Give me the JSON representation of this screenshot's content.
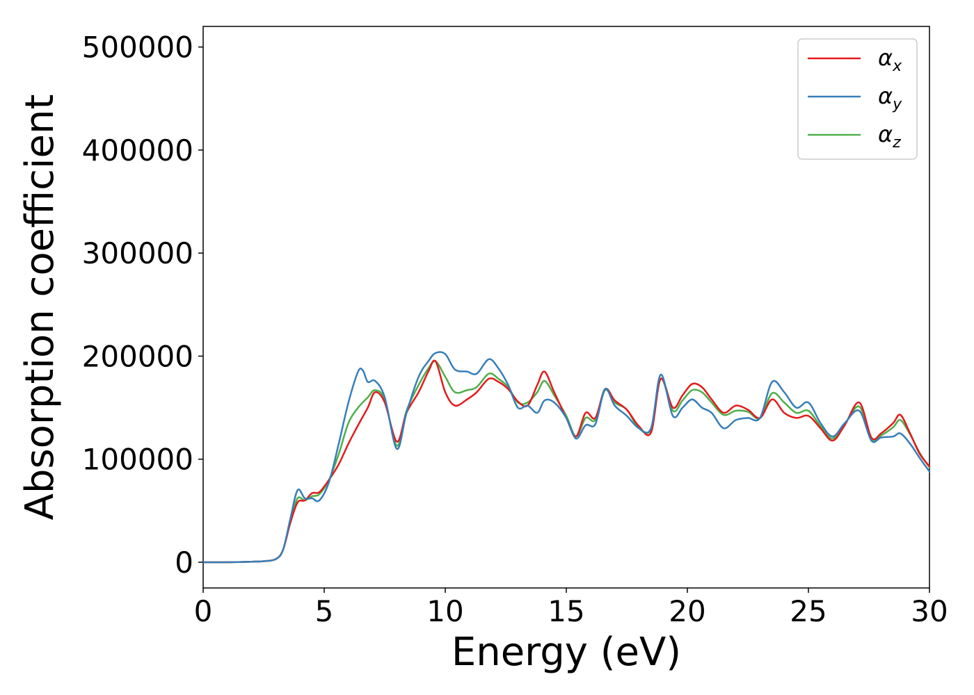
{
  "chart_data": {
    "type": "line",
    "title": "",
    "xlabel": "Energy (eV)",
    "ylabel": "Absorption coefficient",
    "xlim": [
      0,
      30
    ],
    "ylim": [
      -25000,
      520000
    ],
    "xticks": [
      0,
      5,
      10,
      15,
      20,
      25,
      30
    ],
    "yticks": [
      0,
      100000,
      200000,
      300000,
      400000,
      500000
    ],
    "xtick_labels": [
      "0",
      "5",
      "10",
      "15",
      "20",
      "25",
      "30"
    ],
    "ytick_labels": [
      "0",
      "100000",
      "200000",
      "300000",
      "400000",
      "500000"
    ],
    "grid": false,
    "legend_position": "top-right",
    "series": [
      {
        "name": "αx",
        "symbol": "α",
        "subscript": "x",
        "color": "#e41a1c",
        "x": [
          0,
          1,
          2,
          2.5,
          3,
          3.3,
          3.6,
          3.9,
          4.2,
          4.5,
          4.8,
          5.2,
          5.6,
          6.0,
          6.4,
          6.8,
          7.1,
          7.5,
          8.0,
          8.4,
          8.9,
          9.3,
          9.6,
          10.0,
          10.4,
          10.9,
          11.3,
          11.8,
          12.2,
          12.6,
          13.0,
          13.4,
          13.8,
          14.1,
          14.5,
          15.0,
          15.4,
          15.8,
          16.2,
          16.6,
          17.0,
          17.5,
          18.0,
          18.5,
          18.9,
          19.4,
          19.8,
          20.2,
          20.6,
          21.0,
          21.5,
          22.0,
          22.5,
          23.0,
          23.5,
          24.0,
          24.5,
          25.0,
          25.5,
          26.0,
          26.5,
          27.1,
          27.6,
          28.0,
          28.5,
          28.8,
          29.2,
          29.6,
          30.0
        ],
        "values": [
          0,
          0,
          500,
          1000,
          3000,
          12000,
          38000,
          58000,
          60000,
          67000,
          68000,
          80000,
          95000,
          115000,
          133000,
          150000,
          165000,
          155000,
          117000,
          145000,
          165000,
          185000,
          195000,
          165000,
          152000,
          158000,
          165000,
          178000,
          175000,
          168000,
          156000,
          152000,
          172000,
          185000,
          165000,
          140000,
          122000,
          145000,
          140000,
          168000,
          157000,
          148000,
          132000,
          126000,
          178000,
          150000,
          162000,
          173000,
          170000,
          158000,
          145000,
          152000,
          148000,
          140000,
          158000,
          145000,
          140000,
          142000,
          130000,
          118000,
          133000,
          155000,
          121000,
          125000,
          135000,
          143000,
          125000,
          105000,
          93000
        ]
      },
      {
        "name": "αy",
        "symbol": "α",
        "subscript": "y",
        "color": "#377eb8",
        "x": [
          0,
          1,
          2,
          2.5,
          3,
          3.3,
          3.6,
          3.9,
          4.2,
          4.5,
          4.8,
          5.2,
          5.6,
          6.0,
          6.4,
          6.6,
          6.8,
          7.1,
          7.5,
          8.0,
          8.4,
          8.9,
          9.3,
          9.6,
          10.0,
          10.4,
          10.9,
          11.3,
          11.8,
          12.2,
          12.6,
          13.0,
          13.4,
          13.8,
          14.1,
          14.5,
          15.0,
          15.4,
          15.8,
          16.2,
          16.6,
          17.0,
          17.5,
          18.0,
          18.5,
          18.9,
          19.4,
          19.8,
          20.2,
          20.6,
          21.0,
          21.5,
          22.0,
          22.5,
          23.0,
          23.5,
          24.0,
          24.5,
          25.0,
          25.5,
          26.0,
          26.5,
          27.1,
          27.6,
          28.0,
          28.5,
          28.8,
          29.2,
          29.6,
          30.0
        ],
        "values": [
          0,
          0,
          500,
          1000,
          3000,
          12000,
          42000,
          70000,
          62000,
          62000,
          60000,
          78000,
          115000,
          155000,
          185000,
          186000,
          175000,
          176000,
          160000,
          110000,
          145000,
          180000,
          195000,
          203000,
          202000,
          187000,
          185000,
          183000,
          197000,
          188000,
          172000,
          150000,
          152000,
          145000,
          157000,
          155000,
          140000,
          120000,
          133000,
          134000,
          168000,
          152000,
          142000,
          130000,
          130000,
          182000,
          142000,
          150000,
          158000,
          150000,
          145000,
          130000,
          138000,
          140000,
          140000,
          175000,
          165000,
          150000,
          155000,
          135000,
          122000,
          135000,
          147000,
          118000,
          121000,
          122000,
          125000,
          115000,
          101000,
          88000
        ]
      },
      {
        "name": "αz",
        "symbol": "α",
        "subscript": "z",
        "color": "#4daf4a",
        "x": [
          0,
          1,
          2,
          2.5,
          3,
          3.3,
          3.6,
          3.9,
          4.2,
          4.5,
          4.8,
          5.2,
          5.6,
          6.0,
          6.4,
          6.8,
          7.1,
          7.5,
          8.0,
          8.4,
          8.9,
          9.3,
          9.6,
          10.0,
          10.4,
          10.9,
          11.3,
          11.8,
          12.2,
          12.6,
          13.0,
          13.4,
          13.8,
          14.1,
          14.5,
          15.0,
          15.4,
          15.8,
          16.2,
          16.6,
          17.0,
          17.5,
          18.0,
          18.5,
          18.9,
          19.4,
          19.8,
          20.2,
          20.6,
          21.0,
          21.5,
          22.0,
          22.5,
          23.0,
          23.5,
          24.0,
          24.5,
          25.0,
          25.5,
          26.0,
          26.5,
          27.1,
          27.6,
          28.0,
          28.5,
          28.8,
          29.2,
          29.6,
          30.0
        ],
        "values": [
          0,
          0,
          500,
          1000,
          3000,
          12000,
          40000,
          62000,
          60000,
          64000,
          66000,
          80000,
          105000,
          135000,
          150000,
          160000,
          167000,
          158000,
          113000,
          147000,
          172000,
          188000,
          195000,
          180000,
          165000,
          167000,
          170000,
          183000,
          178000,
          170000,
          155000,
          155000,
          165000,
          176000,
          162000,
          142000,
          122000,
          140000,
          138000,
          167000,
          155000,
          148000,
          130000,
          129000,
          178000,
          147000,
          157000,
          167000,
          165000,
          155000,
          143000,
          147000,
          146000,
          140000,
          164000,
          155000,
          145000,
          147000,
          132000,
          120000,
          134000,
          151000,
          120000,
          123000,
          131000,
          138000,
          124000,
          106000,
          92000
        ]
      }
    ]
  }
}
